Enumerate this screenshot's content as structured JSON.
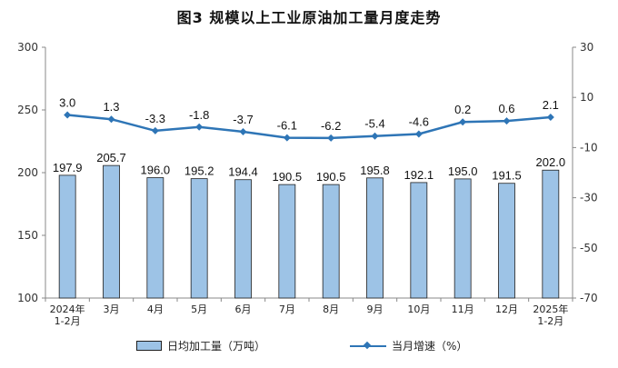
{
  "chart_data": {
    "type": "bar+line",
    "title": "图3  规模以上工业原油加工量月度走势",
    "categories": [
      "2024年\n1-2月",
      "3月",
      "4月",
      "5月",
      "6月",
      "7月",
      "8月",
      "9月",
      "10月",
      "11月",
      "12月",
      "2025年\n1-2月"
    ],
    "series": [
      {
        "name": "日均加工量（万吨）",
        "type": "bar",
        "axis": "left",
        "values": [
          197.9,
          205.7,
          196.0,
          195.2,
          194.4,
          190.5,
          190.5,
          195.8,
          192.1,
          195.0,
          191.5,
          202.0
        ],
        "labels": [
          "197.9",
          "205.7",
          "196.0",
          "195.2",
          "194.4",
          "190.5",
          "190.5",
          "195.8",
          "192.1",
          "195.0",
          "191.5",
          "202.0"
        ],
        "color": "#9dc3e6"
      },
      {
        "name": "当月增速（%）",
        "type": "line",
        "axis": "right",
        "values": [
          3.0,
          1.3,
          -3.3,
          -1.8,
          -3.7,
          -6.1,
          -6.2,
          -5.4,
          -4.6,
          0.2,
          0.6,
          2.1
        ],
        "labels": [
          "3.0",
          "1.3",
          "-3.3",
          "-1.8",
          "-3.7",
          "-6.1",
          "-6.2",
          "-5.4",
          "-4.6",
          "0.2",
          "0.6",
          "2.1"
        ],
        "color": "#2e75b6"
      }
    ],
    "y_left": {
      "ylim": [
        100,
        300
      ],
      "ticks": [
        "300",
        "250",
        "200",
        "150",
        "100"
      ]
    },
    "y_right": {
      "ylim": [
        -70,
        30
      ],
      "ticks": [
        "30",
        "10",
        "-10",
        "-30",
        "-50",
        "-70"
      ]
    },
    "grid": false,
    "legend": "bottom"
  }
}
